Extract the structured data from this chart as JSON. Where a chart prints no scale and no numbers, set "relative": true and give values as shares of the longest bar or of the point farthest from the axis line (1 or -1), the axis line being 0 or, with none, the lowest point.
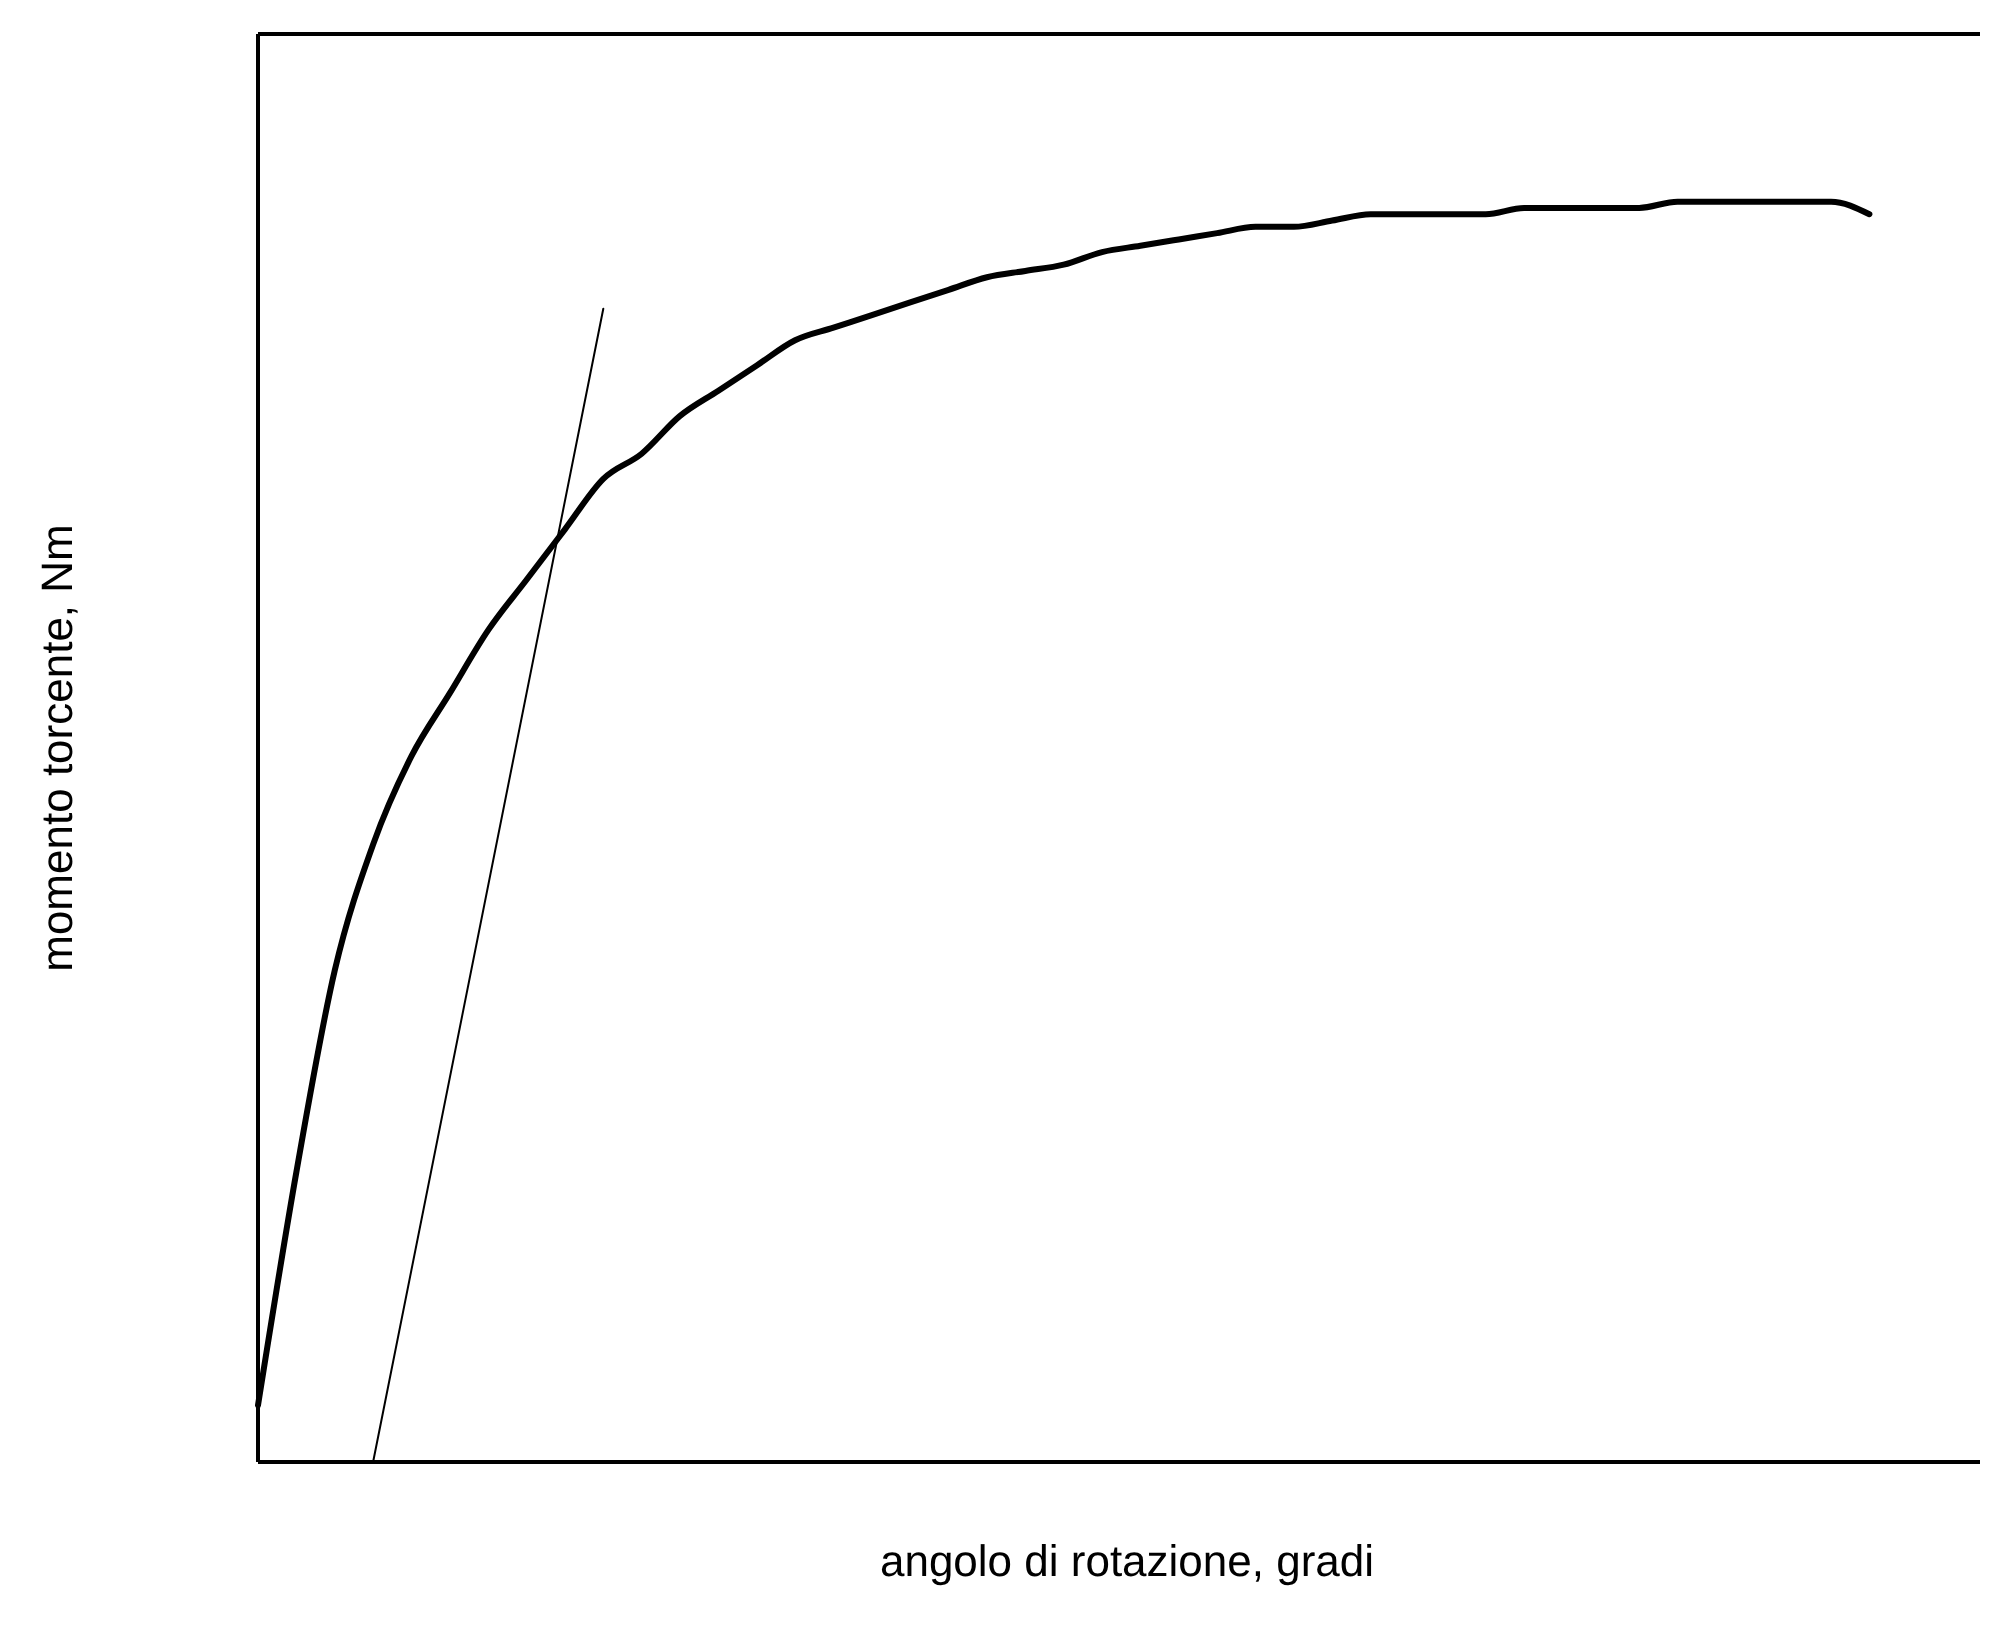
{
  "chart_data": {
    "type": "line",
    "relative": true,
    "xlabel": "angolo di rotazione, gradi",
    "ylabel": "momento torcente, Nm",
    "categories": [
      null,
      null,
      null,
      null,
      null,
      null,
      null,
      null,
      null,
      null,
      null,
      null,
      null,
      null,
      null,
      null,
      null,
      null,
      null,
      null,
      null,
      null,
      null,
      null,
      null,
      null,
      null,
      null,
      null,
      null,
      null,
      null,
      null,
      null,
      null,
      null,
      null,
      null,
      null,
      null,
      null,
      null,
      null,
      null,
      null,
      null
    ],
    "series": [
      {
        "color": "#000000",
        "values": [
          0.045,
          0.23,
          0.39,
          0.49,
          0.56,
          0.61,
          0.66,
          0.7,
          0.74,
          0.78,
          0.8,
          0.83,
          0.85,
          0.87,
          0.89,
          0.9,
          0.91,
          0.92,
          0.93,
          0.94,
          0.945,
          0.95,
          0.96,
          0.965,
          0.97,
          0.975,
          0.98,
          0.98,
          0.985,
          0.99,
          0.99,
          0.99,
          0.99,
          0.995,
          0.995,
          0.995,
          0.995,
          1,
          1,
          1,
          1,
          1,
          0.99,
          null,
          null,
          null
        ]
      },
      {
        "color": "#000000",
        "values": [
          null,
          null,
          null,
          0,
          null,
          null,
          null,
          null,
          null,
          0.915,
          null,
          null,
          null,
          null,
          null,
          null,
          null,
          null,
          null,
          null,
          null,
          null,
          null,
          null,
          null,
          null,
          null,
          null,
          null,
          null,
          null,
          null,
          null,
          null,
          null,
          null,
          null,
          null,
          null,
          null,
          null,
          null,
          null,
          null,
          null,
          null
        ]
      }
    ]
  }
}
